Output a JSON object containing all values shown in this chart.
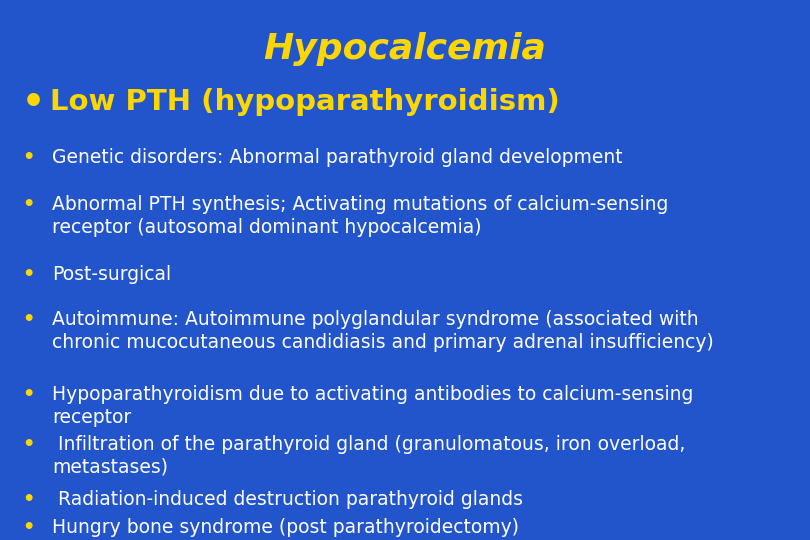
{
  "title": "Hypocalcemia",
  "title_color": "#FFD700",
  "title_fontsize": 26,
  "background_color": "#2255CC",
  "bullet1_text": "Low PTH (hypoparathyroidism)",
  "bullet1_color": "#FFD700",
  "bullet1_fontsize": 21,
  "bullet_dot_color": "#FFD700",
  "sub_bullet_color": "#FFFFFF",
  "sub_bullet_fontsize": 13.5,
  "sub_bullets": [
    "Genetic disorders: Abnormal parathyroid gland development",
    "Abnormal PTH synthesis; Activating mutations of calcium-sensing\nreceptor (autosomal dominant hypocalcemia)",
    "Post-surgical",
    "Autoimmune: Autoimmune polyglandular syndrome (associated with\nchronic mucocutaneous candidiasis and primary adrenal insufficiency)",
    "Hypoparathyroidism due to activating antibodies to calcium-sensing\nreceptor",
    " Infiltration of the parathyroid gland (granulomatous, iron overload,\nmetastases)",
    " Radiation-induced destruction parathyroid glands",
    "Hungry bone syndrome (post parathyroidectomy)"
  ],
  "figsize": [
    8.1,
    5.4
  ],
  "dpi": 100
}
